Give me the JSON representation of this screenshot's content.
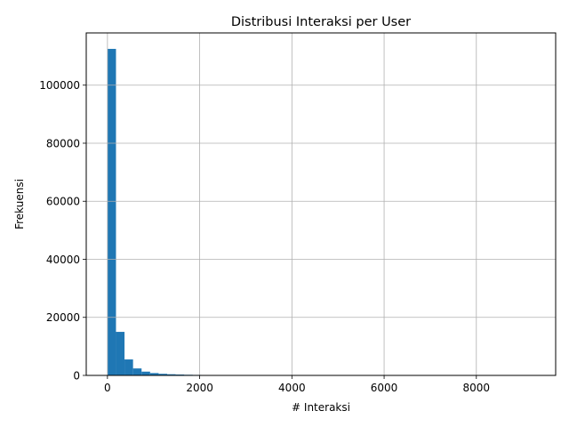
{
  "chart_data": {
    "type": "bar",
    "subtype": "histogram",
    "title": "Distribusi Interaksi per User",
    "xlabel": "# Interaksi",
    "ylabel": "Frekuensi",
    "xlim": [
      -460,
      9720
    ],
    "ylim": [
      0,
      118000
    ],
    "xticks": [
      0,
      2000,
      4000,
      6000,
      8000
    ],
    "xtick_labels": [
      "0",
      "2000",
      "4000",
      "6000",
      "8000"
    ],
    "yticks": [
      0,
      20000,
      40000,
      60000,
      80000,
      100000
    ],
    "ytick_labels": [
      "0",
      "20000",
      "40000",
      "60000",
      "80000",
      "100000"
    ],
    "grid": true,
    "bar_color": "#1f77b4",
    "bin_width": 185,
    "bin_start": 0,
    "counts": [
      112500,
      15000,
      5500,
      2400,
      1300,
      800,
      550,
      400,
      300,
      220,
      170,
      130
    ]
  }
}
